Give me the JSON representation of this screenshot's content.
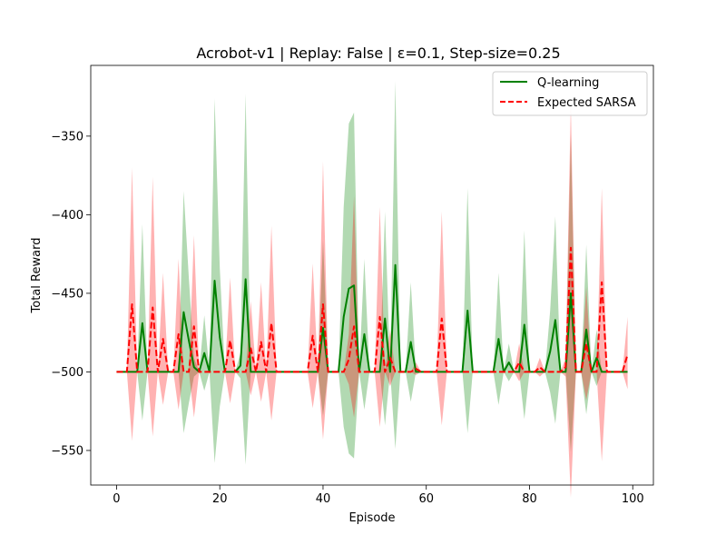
{
  "chart_data": {
    "type": "line",
    "title": "Acrobot-v1 | Replay: False | ε=0.1, Step-size=0.25",
    "xlabel": "Episode",
    "ylabel": "Total Reward",
    "xlim": [
      -5,
      104
    ],
    "ylim": [
      -572,
      -305
    ],
    "x_ticks": [
      0,
      20,
      40,
      60,
      80,
      100
    ],
    "y_ticks": [
      -550,
      -500,
      -450,
      -400,
      -350
    ],
    "grid": false,
    "legend_placement": "top-right",
    "x": [
      0,
      1,
      2,
      3,
      4,
      5,
      6,
      7,
      8,
      9,
      10,
      11,
      12,
      13,
      14,
      15,
      16,
      17,
      18,
      19,
      20,
      21,
      22,
      23,
      24,
      25,
      26,
      27,
      28,
      29,
      30,
      31,
      32,
      33,
      34,
      35,
      36,
      37,
      38,
      39,
      40,
      41,
      42,
      43,
      44,
      45,
      46,
      47,
      48,
      49,
      50,
      51,
      52,
      53,
      54,
      55,
      56,
      57,
      58,
      59,
      60,
      61,
      62,
      63,
      64,
      65,
      66,
      67,
      68,
      69,
      70,
      71,
      72,
      73,
      74,
      75,
      76,
      77,
      78,
      79,
      80,
      81,
      82,
      83,
      84,
      85,
      86,
      87,
      88,
      89,
      90,
      91,
      92,
      93,
      94,
      95,
      96,
      97,
      98,
      99
    ],
    "series": [
      {
        "name": "Q-learning",
        "color": "#008000",
        "dash": "solid",
        "band_color": "#008000",
        "mean": [
          -500,
          -500,
          -500,
          -500,
          -500,
          -469,
          -500,
          -500,
          -500,
          -500,
          -500,
          -500,
          -500,
          -462,
          -480,
          -497,
          -500,
          -488,
          -500,
          -442,
          -478,
          -500,
          -500,
          -500,
          -496,
          -441,
          -500,
          -500,
          -500,
          -500,
          -500,
          -500,
          -500,
          -500,
          -500,
          -500,
          -500,
          -500,
          -500,
          -500,
          -472,
          -500,
          -500,
          -500,
          -465,
          -447,
          -445,
          -500,
          -476,
          -500,
          -500,
          -500,
          -466,
          -500,
          -432,
          -500,
          -500,
          -481,
          -500,
          -500,
          -500,
          -500,
          -500,
          -500,
          -500,
          -500,
          -500,
          -500,
          -461,
          -500,
          -500,
          -500,
          -500,
          -500,
          -479,
          -500,
          -494,
          -500,
          -500,
          -470,
          -500,
          -500,
          -500,
          -500,
          -487,
          -467,
          -500,
          -500,
          -450,
          -500,
          -500,
          -473,
          -500,
          -491,
          -500,
          -500,
          -500,
          -500,
          -500,
          -500
        ],
        "lower": [
          -500,
          -500,
          -500,
          -500,
          -500,
          -531,
          -500,
          -500,
          -500,
          -500,
          -500,
          -500,
          -500,
          -539,
          -520,
          -503,
          -500,
          -512,
          -500,
          -558,
          -522,
          -500,
          -500,
          -500,
          -504,
          -559,
          -500,
          -500,
          -500,
          -500,
          -500,
          -500,
          -500,
          -500,
          -500,
          -500,
          -500,
          -500,
          -500,
          -500,
          -528,
          -500,
          -500,
          -500,
          -535,
          -552,
          -555,
          -500,
          -524,
          -500,
          -500,
          -500,
          -534,
          -500,
          -549,
          -500,
          -500,
          -519,
          -500,
          -500,
          -500,
          -500,
          -500,
          -500,
          -500,
          -500,
          -500,
          -500,
          -539,
          -500,
          -500,
          -500,
          -500,
          -500,
          -521,
          -500,
          -506,
          -500,
          -500,
          -530,
          -500,
          -500,
          -500,
          -500,
          -513,
          -533,
          -500,
          -500,
          -551,
          -500,
          -500,
          -527,
          -500,
          -509,
          -500,
          -500,
          -500,
          -500,
          -500,
          -500
        ],
        "upper": [
          -500,
          -500,
          -500,
          -500,
          -500,
          -406,
          -500,
          -500,
          -500,
          -500,
          -500,
          -500,
          -500,
          -385,
          -440,
          -491,
          -500,
          -464,
          -500,
          -326,
          -434,
          -500,
          -500,
          -500,
          -488,
          -323,
          -500,
          -500,
          -500,
          -500,
          -500,
          -500,
          -500,
          -500,
          -500,
          -500,
          -500,
          -500,
          -500,
          -500,
          -416,
          -500,
          -500,
          -500,
          -395,
          -342,
          -335,
          -500,
          -428,
          -500,
          -500,
          -500,
          -398,
          -500,
          -315,
          -500,
          -500,
          -443,
          -500,
          -500,
          -500,
          -500,
          -500,
          -500,
          -500,
          -500,
          -500,
          -500,
          -383,
          -500,
          -500,
          -500,
          -500,
          -500,
          -437,
          -500,
          -482,
          -500,
          -500,
          -410,
          -500,
          -500,
          -500,
          -500,
          -461,
          -401,
          -500,
          -500,
          -349,
          -500,
          -500,
          -419,
          -500,
          -473,
          -500,
          -500,
          -500,
          -500,
          -500,
          -500
        ]
      },
      {
        "name": "Expected SARSA",
        "color": "#ff0000",
        "dash": "dashed",
        "band_color": "#ff0000",
        "mean": [
          -500,
          -500,
          -500,
          -457,
          -500,
          -500,
          -500,
          -459,
          -500,
          -479,
          -500,
          -500,
          -476,
          -500,
          -500,
          -471,
          -500,
          -500,
          -500,
          -500,
          -500,
          -500,
          -480,
          -500,
          -500,
          -500,
          -485,
          -500,
          -481,
          -500,
          -469,
          -500,
          -500,
          -500,
          -500,
          -500,
          -500,
          -500,
          -477,
          -500,
          -457,
          -500,
          -500,
          -500,
          -500,
          -492,
          -471,
          -500,
          -500,
          -500,
          -500,
          -465,
          -500,
          -491,
          -500,
          -500,
          -500,
          -500,
          -498,
          -500,
          -500,
          -500,
          -500,
          -466,
          -500,
          -500,
          -500,
          -500,
          -500,
          -500,
          -500,
          -500,
          -500,
          -500,
          -500,
          -500,
          -500,
          -500,
          -494,
          -500,
          -500,
          -500,
          -497,
          -500,
          -500,
          -500,
          -500,
          -497,
          -421,
          -500,
          -500,
          -482,
          -500,
          -500,
          -443,
          -500,
          -500,
          -500,
          -500,
          -489
        ],
        "lower": [
          -500,
          -500,
          -500,
          -544,
          -500,
          -500,
          -500,
          -541,
          -500,
          -521,
          -500,
          -500,
          -524,
          -500,
          -500,
          -529,
          -500,
          -500,
          -500,
          -500,
          -500,
          -500,
          -520,
          -500,
          -500,
          -500,
          -515,
          -500,
          -519,
          -500,
          -531,
          -500,
          -500,
          -500,
          -500,
          -500,
          -500,
          -500,
          -523,
          -500,
          -543,
          -500,
          -500,
          -500,
          -500,
          -508,
          -529,
          -500,
          -500,
          -500,
          -500,
          -535,
          -500,
          -509,
          -500,
          -500,
          -500,
          -500,
          -502,
          -500,
          -500,
          -500,
          -500,
          -534,
          -500,
          -500,
          -500,
          -500,
          -500,
          -500,
          -500,
          -500,
          -500,
          -500,
          -500,
          -500,
          -500,
          -500,
          -506,
          -500,
          -500,
          -500,
          -503,
          -500,
          -500,
          -500,
          -500,
          -503,
          -580,
          -500,
          -500,
          -518,
          -500,
          -500,
          -557,
          -500,
          -500,
          -500,
          -500,
          -511
        ],
        "upper": [
          -500,
          -500,
          -500,
          -370,
          -500,
          -500,
          -500,
          -376,
          -500,
          -437,
          -500,
          -500,
          -428,
          -500,
          -500,
          -413,
          -500,
          -500,
          -500,
          -500,
          -500,
          -500,
          -440,
          -500,
          -500,
          -500,
          -455,
          -500,
          -443,
          -500,
          -407,
          -500,
          -500,
          -500,
          -500,
          -500,
          -500,
          -500,
          -431,
          -500,
          -366,
          -500,
          -500,
          -500,
          -500,
          -476,
          -388,
          -500,
          -500,
          -500,
          -500,
          -395,
          -500,
          -473,
          -500,
          -500,
          -500,
          -500,
          -494,
          -500,
          -500,
          -500,
          -500,
          -398,
          -500,
          -500,
          -500,
          -500,
          -500,
          -500,
          -500,
          -500,
          -500,
          -500,
          -500,
          -500,
          -500,
          -500,
          -482,
          -500,
          -500,
          -500,
          -491,
          -500,
          -500,
          -500,
          -500,
          -491,
          -330,
          -500,
          -500,
          -446,
          -500,
          -500,
          -383,
          -500,
          -500,
          -500,
          -500,
          -465
        ]
      }
    ]
  }
}
